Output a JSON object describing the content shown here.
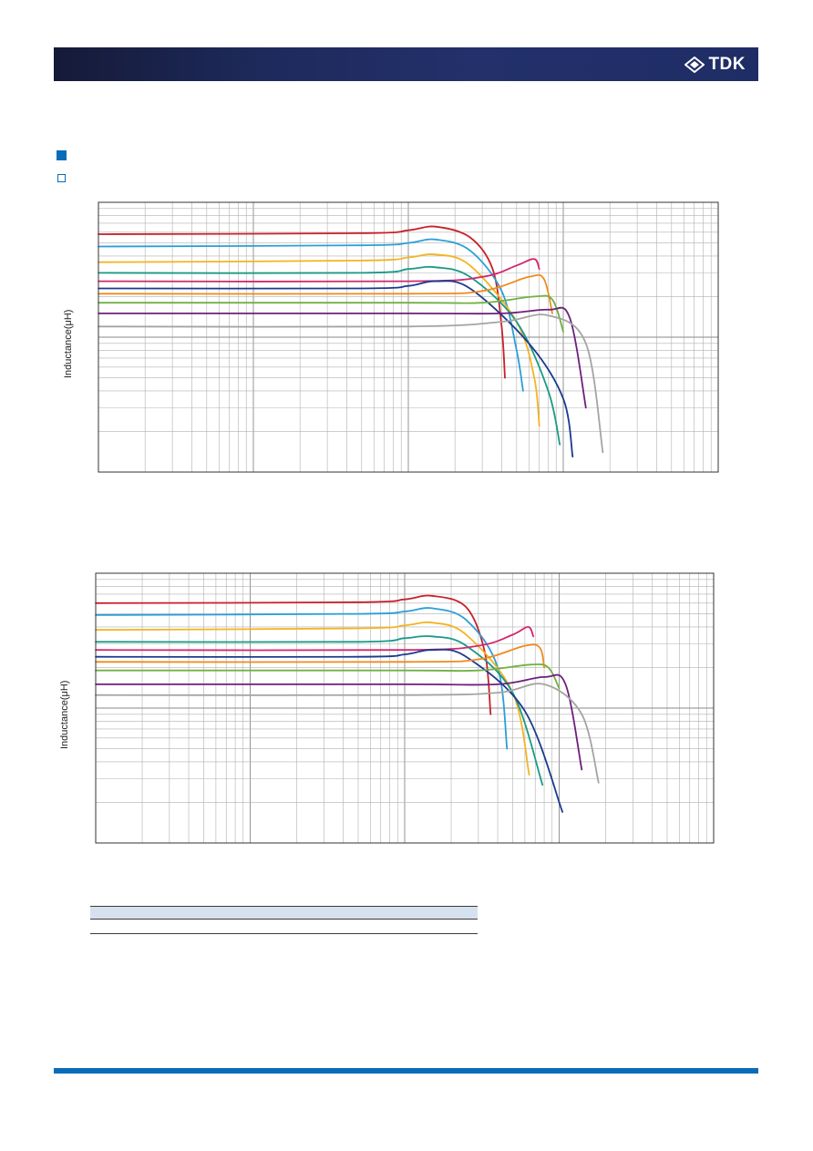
{
  "header": {
    "logo_text": "TDK"
  },
  "colors": {
    "header_bar": "#1e2a5c",
    "accent": "#0a6cb8",
    "grid": "#b0b0b0",
    "frame": "#333333",
    "table_header": "#d6e1f0"
  },
  "chart_data": [
    {
      "type": "line",
      "scale": "log-log",
      "ylabel": "Inductance(μH)",
      "xlim": [
        0.01,
        100
      ],
      "ylim": [
        0.1,
        10
      ],
      "grid": true,
      "legend": "none",
      "series": [
        {
          "color": "#c8202a",
          "x": [
            0.01,
            0.5,
            1.0,
            1.5,
            2.5,
            3.5,
            4.0,
            4.2
          ],
          "y": [
            5.8,
            5.9,
            6.2,
            6.6,
            5.5,
            3.2,
            1.2,
            0.5
          ]
        },
        {
          "color": "#2a9fd6",
          "x": [
            0.01,
            0.5,
            1.0,
            1.5,
            2.5,
            4.0,
            5.0,
            5.5
          ],
          "y": [
            4.7,
            4.8,
            5.0,
            5.3,
            4.4,
            2.2,
            0.8,
            0.4
          ]
        },
        {
          "color": "#f4b322",
          "x": [
            0.01,
            0.5,
            1.0,
            1.5,
            2.5,
            5.0,
            6.5,
            7.0
          ],
          "y": [
            3.6,
            3.7,
            3.9,
            4.1,
            3.4,
            1.3,
            0.5,
            0.22
          ]
        },
        {
          "color": "#1a9a86",
          "x": [
            0.01,
            0.5,
            1.0,
            1.5,
            2.5,
            5.0,
            8.0,
            9.5
          ],
          "y": [
            3.0,
            3.0,
            3.2,
            3.3,
            2.8,
            1.3,
            0.4,
            0.16
          ]
        },
        {
          "color": "#d1286e",
          "x": [
            0.01,
            1.0,
            3.0,
            5.0,
            6.5,
            7.0
          ],
          "y": [
            2.6,
            2.6,
            2.8,
            3.4,
            3.8,
            3.2
          ]
        },
        {
          "color": "#1a3a8f",
          "x": [
            0.01,
            0.5,
            1.0,
            1.5,
            2.5,
            6.0,
            10.0,
            11.5
          ],
          "y": [
            2.3,
            2.3,
            2.4,
            2.6,
            2.3,
            0.9,
            0.35,
            0.13
          ]
        },
        {
          "color": "#f08a1c",
          "x": [
            0.01,
            1.0,
            3.0,
            6.0,
            7.5,
            8.5
          ],
          "y": [
            2.1,
            2.1,
            2.2,
            2.8,
            2.7,
            1.5
          ]
        },
        {
          "color": "#72b043",
          "x": [
            0.01,
            1.0,
            3.0,
            6.5,
            8.5,
            10.0
          ],
          "y": [
            1.8,
            1.8,
            1.8,
            2.0,
            1.9,
            1.1
          ]
        },
        {
          "color": "#6e1f7c",
          "x": [
            0.01,
            1.0,
            4.0,
            8.0,
            11.0,
            14.0
          ],
          "y": [
            1.5,
            1.5,
            1.5,
            1.6,
            1.4,
            0.3
          ]
        },
        {
          "color": "#a4a4a4",
          "x": [
            0.01,
            1.0,
            4.0,
            8.0,
            14.0,
            18.0
          ],
          "y": [
            1.2,
            1.2,
            1.3,
            1.45,
            0.9,
            0.14
          ]
        }
      ]
    },
    {
      "type": "line",
      "scale": "log-log",
      "ylabel": "Inductance(μH)",
      "xlim": [
        0.01,
        100
      ],
      "ylim": [
        0.1,
        10
      ],
      "grid": true,
      "legend": "none",
      "series": [
        {
          "color": "#c8202a",
          "x": [
            0.01,
            0.5,
            1.0,
            1.5,
            2.5,
            3.3,
            3.6
          ],
          "y": [
            6.0,
            6.1,
            6.4,
            6.8,
            5.6,
            2.6,
            0.9
          ]
        },
        {
          "color": "#2a9fd6",
          "x": [
            0.01,
            0.5,
            1.0,
            1.5,
            2.5,
            4.0,
            4.6
          ],
          "y": [
            4.9,
            5.0,
            5.2,
            5.5,
            4.5,
            2.0,
            0.5
          ]
        },
        {
          "color": "#f4b322",
          "x": [
            0.01,
            0.5,
            1.0,
            1.5,
            2.5,
            5.0,
            6.4
          ],
          "y": [
            3.8,
            3.9,
            4.1,
            4.3,
            3.5,
            1.3,
            0.32
          ]
        },
        {
          "color": "#1a9a86",
          "x": [
            0.01,
            0.5,
            1.0,
            1.5,
            2.5,
            5.0,
            7.8
          ],
          "y": [
            3.1,
            3.1,
            3.3,
            3.4,
            2.9,
            1.3,
            0.27
          ]
        },
        {
          "color": "#d1286e",
          "x": [
            0.01,
            1.0,
            3.0,
            5.0,
            6.3,
            6.8
          ],
          "y": [
            2.7,
            2.7,
            2.9,
            3.5,
            4.0,
            3.4
          ]
        },
        {
          "color": "#1a3a8f",
          "x": [
            0.01,
            0.5,
            1.0,
            1.5,
            2.5,
            6.0,
            10.5
          ],
          "y": [
            2.4,
            2.4,
            2.5,
            2.7,
            2.4,
            0.95,
            0.17
          ]
        },
        {
          "color": "#f08a1c",
          "x": [
            0.01,
            1.0,
            3.0,
            6.0,
            7.5,
            8.0
          ],
          "y": [
            2.2,
            2.2,
            2.3,
            2.9,
            2.8,
            2.0
          ]
        },
        {
          "color": "#72b043",
          "x": [
            0.01,
            1.0,
            3.0,
            6.5,
            8.5,
            10.0
          ],
          "y": [
            1.9,
            1.9,
            1.9,
            2.1,
            2.0,
            1.4
          ]
        },
        {
          "color": "#6e1f7c",
          "x": [
            0.01,
            1.0,
            4.0,
            8.0,
            11.0,
            14.0
          ],
          "y": [
            1.5,
            1.5,
            1.5,
            1.7,
            1.5,
            0.35
          ]
        },
        {
          "color": "#a4a4a4",
          "x": [
            0.01,
            1.0,
            4.0,
            8.0,
            14.0,
            18.0
          ],
          "y": [
            1.25,
            1.25,
            1.3,
            1.5,
            0.9,
            0.28
          ]
        }
      ]
    }
  ]
}
